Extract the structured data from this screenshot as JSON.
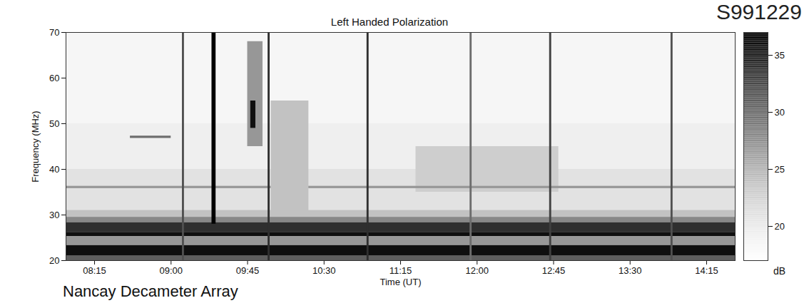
{
  "chart_data": {
    "type": "heatmap",
    "title": "Left Handed Polarization",
    "subtitle": "S991229",
    "caption": "Nancay Decameter Array",
    "x_label": "Time (UT)",
    "y_label": "Frequency (MHz)",
    "xlim": [
      7.97,
      14.53
    ],
    "xticks": [
      {
        "value": 8.25,
        "label": "08:15"
      },
      {
        "value": 9.0,
        "label": "09:00"
      },
      {
        "value": 9.75,
        "label": "09:45"
      },
      {
        "value": 10.5,
        "label": "10:30"
      },
      {
        "value": 11.25,
        "label": "11:15"
      },
      {
        "value": 12.0,
        "label": "12:00"
      },
      {
        "value": 12.75,
        "label": "12:45"
      },
      {
        "value": 13.5,
        "label": "13:30"
      },
      {
        "value": 14.25,
        "label": "14:15"
      }
    ],
    "ylim": [
      20,
      70
    ],
    "yticks": [
      20,
      30,
      40,
      50,
      60,
      70
    ],
    "cells": [
      [
        7.97,
        14.53,
        20,
        70,
        18.5
      ],
      [
        7.97,
        14.53,
        40,
        50,
        19.5
      ],
      [
        7.97,
        14.53,
        30,
        40,
        21
      ],
      [
        7.97,
        14.53,
        20,
        30,
        23
      ],
      [
        11.4,
        12.8,
        35,
        45,
        23
      ],
      [
        7.97,
        14.53,
        35.8,
        36.3,
        27
      ],
      [
        8.6,
        9.0,
        46.8,
        47.3,
        30
      ],
      [
        7.97,
        14.53,
        29.5,
        31,
        24
      ],
      [
        7.97,
        14.53,
        28.3,
        29.5,
        28
      ],
      [
        7.97,
        14.53,
        26.2,
        28.3,
        34
      ],
      [
        7.97,
        14.53,
        25.3,
        26.2,
        36
      ],
      [
        7.97,
        14.53,
        23.3,
        25.3,
        27
      ],
      [
        7.97,
        14.53,
        21.0,
        23.3,
        36
      ],
      [
        7.97,
        14.53,
        20,
        21.0,
        31
      ],
      [
        9.98,
        10.35,
        30,
        55,
        24
      ],
      [
        9.75,
        9.9,
        45,
        68,
        27
      ],
      [
        9.78,
        9.83,
        49,
        55,
        36
      ],
      [
        9.4,
        9.44,
        28,
        70,
        37
      ],
      [
        9.11,
        9.13,
        20,
        70,
        32
      ],
      [
        9.95,
        9.97,
        20,
        70,
        34
      ],
      [
        10.92,
        10.94,
        20,
        70,
        34
      ],
      [
        11.93,
        11.95,
        20,
        70,
        30
      ],
      [
        12.71,
        12.73,
        20,
        70,
        33
      ],
      [
        13.9,
        13.92,
        20,
        70,
        32
      ]
    ],
    "colorbar": {
      "range": [
        17,
        37
      ],
      "ticks": [
        20,
        25,
        30,
        35
      ],
      "label": "dB"
    }
  }
}
